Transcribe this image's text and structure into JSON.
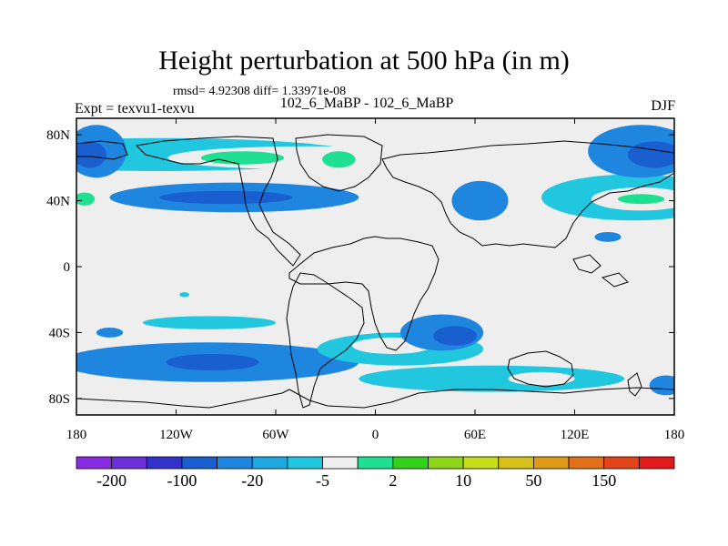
{
  "header": {
    "title": "Height perturbation at 500 hPa (in m)",
    "subtitle": "rmsd= 4.92308 diff= 1.33971e-08",
    "left_label": "Expt = texvu1-texvu",
    "center_label": "102_6_MaBP - 102_6_MaBP",
    "right_label": "DJF"
  },
  "map": {
    "projection": "cylindrical-equidistant",
    "lon_range": [
      -180,
      180
    ],
    "lat_range": [
      -90,
      90
    ],
    "lon_ticks": [
      {
        "value": -180,
        "label": "180"
      },
      {
        "value": -120,
        "label": "120W"
      },
      {
        "value": -60,
        "label": "60W"
      },
      {
        "value": 0,
        "label": "0"
      },
      {
        "value": 60,
        "label": "60E"
      },
      {
        "value": 120,
        "label": "120E"
      },
      {
        "value": 180,
        "label": "180"
      }
    ],
    "lat_ticks": [
      {
        "value": 80,
        "label": "80N"
      },
      {
        "value": 40,
        "label": "40N"
      },
      {
        "value": 0,
        "label": "0"
      },
      {
        "value": -40,
        "label": "40S"
      },
      {
        "value": -80,
        "label": "80S"
      }
    ],
    "background_color": "#eeeeee",
    "features": [
      {
        "name": "arctic-positive-band",
        "lon": -130,
        "lat": 68,
        "rx_deg": 120,
        "ry_deg": 10,
        "level": 6
      },
      {
        "name": "arctic-positive-core",
        "lon": -40,
        "lat": 66,
        "rx_deg": 85,
        "ry_deg": 7,
        "level": 7
      },
      {
        "name": "arctic-positive-max",
        "lon": -22,
        "lat": 65,
        "rx_deg": 10,
        "ry_deg": 5,
        "level": 8
      },
      {
        "name": "west-pacific-high",
        "lon": -80,
        "lat": 66,
        "rx_deg": 25,
        "ry_deg": 4,
        "level": 8
      },
      {
        "name": "midlat-negative-band",
        "lon": -85,
        "lat": 42,
        "rx_deg": 75,
        "ry_deg": 9,
        "level": 4
      },
      {
        "name": "midlat-negative-core",
        "lon": -90,
        "lat": 42,
        "rx_deg": 40,
        "ry_deg": 4,
        "level": 3
      },
      {
        "name": "east-asia-negative",
        "lon": 63,
        "lat": 40,
        "rx_deg": 17,
        "ry_deg": 12,
        "level": 4
      },
      {
        "name": "pacific-positive-band",
        "lon": 155,
        "lat": 42,
        "rx_deg": 55,
        "ry_deg": 14,
        "level": 6
      },
      {
        "name": "pacific-positive-core",
        "lon": 160,
        "lat": 41,
        "rx_deg": 30,
        "ry_deg": 7,
        "level": 7
      },
      {
        "name": "pacific-positive-max",
        "lon": 160,
        "lat": 41,
        "rx_deg": 14,
        "ry_deg": 3,
        "level": 8
      },
      {
        "name": "dateline-positive-west",
        "lon": -172,
        "lat": 41,
        "rx_deg": 12,
        "ry_deg": 10,
        "level": 7
      },
      {
        "name": "dateline-positive-west-core",
        "lon": -175,
        "lat": 41,
        "rx_deg": 6,
        "ry_deg": 4,
        "level": 8
      },
      {
        "name": "siberia-negative-west",
        "lon": -168,
        "lat": 70,
        "rx_deg": 18,
        "ry_deg": 16,
        "level": 4
      },
      {
        "name": "siberia-negative-west-core",
        "lon": -172,
        "lat": 68,
        "rx_deg": 10,
        "ry_deg": 8,
        "level": 3
      },
      {
        "name": "siberia-negative-east",
        "lon": 160,
        "lat": 70,
        "rx_deg": 32,
        "ry_deg": 16,
        "level": 4
      },
      {
        "name": "siberia-negative-east-core",
        "lon": 168,
        "lat": 68,
        "rx_deg": 16,
        "ry_deg": 8,
        "level": 3
      },
      {
        "name": "pacific-subtropic-negative",
        "lon": 140,
        "lat": 18,
        "rx_deg": 8,
        "ry_deg": 3,
        "level": 4
      },
      {
        "name": "southern-negative-west",
        "lon": -100,
        "lat": -58,
        "rx_deg": 90,
        "ry_deg": 12,
        "level": 4
      },
      {
        "name": "southern-negative-west-core",
        "lon": -98,
        "lat": -58,
        "rx_deg": 28,
        "ry_deg": 5,
        "level": 3
      },
      {
        "name": "southern-positive-west",
        "lon": -100,
        "lat": -34,
        "rx_deg": 40,
        "ry_deg": 4,
        "level": 6
      },
      {
        "name": "south-atlantic-positive",
        "lon": 15,
        "lat": -50,
        "rx_deg": 50,
        "ry_deg": 10,
        "level": 6
      },
      {
        "name": "south-atlantic-core",
        "lon": 10,
        "lat": -48,
        "rx_deg": 24,
        "ry_deg": 5,
        "level": 7
      },
      {
        "name": "south-indian-negative",
        "lon": 40,
        "lat": -40,
        "rx_deg": 25,
        "ry_deg": 11,
        "level": 4
      },
      {
        "name": "south-indian-core",
        "lon": 48,
        "lat": -42,
        "rx_deg": 13,
        "ry_deg": 6,
        "level": 3
      },
      {
        "name": "southern-positive-east",
        "lon": 70,
        "lat": -68,
        "rx_deg": 80,
        "ry_deg": 8,
        "level": 6
      },
      {
        "name": "southern-positive-east-core",
        "lon": 100,
        "lat": -68,
        "rx_deg": 20,
        "ry_deg": 4,
        "level": 7
      },
      {
        "name": "antarctic-negative-east",
        "lon": 175,
        "lat": -72,
        "rx_deg": 10,
        "ry_deg": 6,
        "level": 4
      },
      {
        "name": "south-pacific-negative-small",
        "lon": -160,
        "lat": -40,
        "rx_deg": 8,
        "ry_deg": 3,
        "level": 4
      },
      {
        "name": "south-pacific-positive-small",
        "lon": -115,
        "lat": -17,
        "rx_deg": 3,
        "ry_deg": 1.5,
        "level": 6
      }
    ]
  },
  "colorbar": {
    "colors": [
      "#8a2be2",
      "#6a2fd8",
      "#3333cc",
      "#1a5fd0",
      "#1f86e0",
      "#1fa8e0",
      "#21c7df",
      "#eeeeee",
      "#1fdf93",
      "#33d11a",
      "#8fd61a",
      "#c6dd1a",
      "#d8c01a",
      "#e09a1a",
      "#e3701a",
      "#e3441a",
      "#e31a1a"
    ],
    "labels": [
      "-200",
      "-100",
      "-20",
      "-5",
      "2",
      "10",
      "50",
      "150"
    ]
  }
}
